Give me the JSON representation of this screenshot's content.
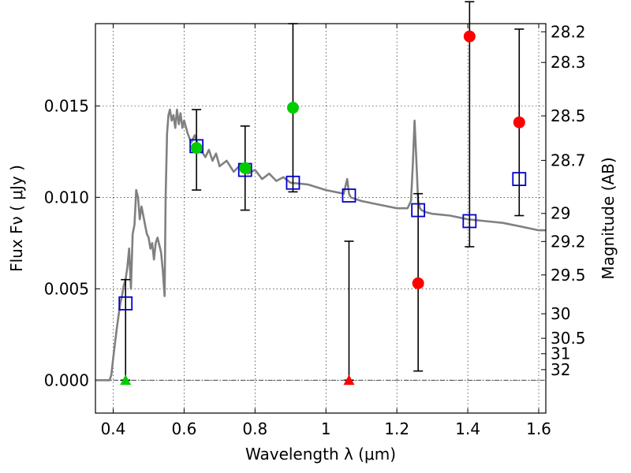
{
  "chart_data": {
    "type": "scatter",
    "xlabel": "Wavelength  λ (μm)",
    "ylabel": "Flux  Fν  ( μJy )",
    "ylabel_right": "Magnitude (AB)",
    "xlim": [
      0.35,
      1.62
    ],
    "ylim": [
      -0.0018,
      0.0195
    ],
    "grid": true,
    "x_ticks": [
      {
        "value": 0.4,
        "label": "0.4"
      },
      {
        "value": 0.6,
        "label": "0.6"
      },
      {
        "value": 0.8,
        "label": "0.8"
      },
      {
        "value": 1.0,
        "label": "1"
      },
      {
        "value": 1.2,
        "label": "1.2"
      },
      {
        "value": 1.4,
        "label": "1.4"
      },
      {
        "value": 1.6,
        "label": "1.6"
      }
    ],
    "y_ticks": [
      {
        "value": 0.0,
        "label": "0.000"
      },
      {
        "value": 0.005,
        "label": "0.005"
      },
      {
        "value": 0.01,
        "label": "0.010"
      },
      {
        "value": 0.015,
        "label": "0.015"
      }
    ],
    "mag_ticks": [
      {
        "value": 28.2,
        "label": "28.2"
      },
      {
        "value": 28.3,
        "label": "28.3"
      },
      {
        "value": 28.5,
        "label": "28.5"
      },
      {
        "value": 28.7,
        "label": "28.7"
      },
      {
        "value": 29.0,
        "label": "29"
      },
      {
        "value": 29.2,
        "label": "29.2"
      },
      {
        "value": 29.5,
        "label": "29.5"
      },
      {
        "value": 30.0,
        "label": "30"
      },
      {
        "value": 30.5,
        "label": "30.5"
      },
      {
        "value": 31.0,
        "label": "31"
      },
      {
        "value": 32.0,
        "label": "32"
      }
    ],
    "colors": {
      "template": "#808080",
      "model": "#0000cc",
      "detected": "#00cc00",
      "non_detected": "#ff0000",
      "errorbar": "#000000"
    },
    "template_spectrum": {
      "x": [
        0.35,
        0.39,
        0.395,
        0.4,
        0.405,
        0.41,
        0.415,
        0.42,
        0.425,
        0.43,
        0.435,
        0.44,
        0.445,
        0.45,
        0.455,
        0.46,
        0.465,
        0.47,
        0.475,
        0.48,
        0.485,
        0.49,
        0.495,
        0.5,
        0.505,
        0.51,
        0.515,
        0.52,
        0.525,
        0.53,
        0.535,
        0.54,
        0.545,
        0.548,
        0.552,
        0.556,
        0.56,
        0.565,
        0.57,
        0.575,
        0.58,
        0.585,
        0.59,
        0.595,
        0.6,
        0.61,
        0.62,
        0.63,
        0.64,
        0.65,
        0.66,
        0.67,
        0.68,
        0.69,
        0.7,
        0.72,
        0.74,
        0.76,
        0.78,
        0.8,
        0.82,
        0.84,
        0.86,
        0.88,
        0.9,
        0.95,
        1.0,
        1.05,
        1.06,
        1.065,
        1.07,
        1.1,
        1.15,
        1.2,
        1.23,
        1.24,
        1.245,
        1.25,
        1.255,
        1.26,
        1.265,
        1.27,
        1.28,
        1.3,
        1.35,
        1.4,
        1.45,
        1.5,
        1.55,
        1.6,
        1.62
      ],
      "y": [
        0.0,
        0.0,
        0.0003,
        0.0012,
        0.002,
        0.0028,
        0.0035,
        0.0042,
        0.0046,
        0.0052,
        0.0055,
        0.0062,
        0.0072,
        0.005,
        0.008,
        0.0085,
        0.0104,
        0.01,
        0.0088,
        0.0095,
        0.009,
        0.0085,
        0.008,
        0.0078,
        0.0072,
        0.0075,
        0.0066,
        0.0075,
        0.0078,
        0.0074,
        0.007,
        0.006,
        0.0046,
        0.01,
        0.0135,
        0.0145,
        0.0148,
        0.0142,
        0.0145,
        0.0138,
        0.0148,
        0.014,
        0.0146,
        0.0138,
        0.0142,
        0.0135,
        0.013,
        0.0134,
        0.0128,
        0.0125,
        0.0122,
        0.0126,
        0.012,
        0.0124,
        0.0117,
        0.012,
        0.0114,
        0.0118,
        0.0113,
        0.0115,
        0.011,
        0.0113,
        0.0109,
        0.0111,
        0.0108,
        0.0107,
        0.0104,
        0.0102,
        0.011,
        0.0102,
        0.01,
        0.0098,
        0.0096,
        0.0094,
        0.0094,
        0.0098,
        0.0118,
        0.0142,
        0.012,
        0.0098,
        0.0094,
        0.0093,
        0.0092,
        0.0091,
        0.009,
        0.0088,
        0.0087,
        0.0086,
        0.0084,
        0.0082,
        0.0082
      ]
    },
    "model_fluxes": {
      "x": [
        0.435,
        0.635,
        0.772,
        0.907,
        1.065,
        1.26,
        1.405,
        1.545
      ],
      "y": [
        0.0042,
        0.0128,
        0.0115,
        0.0108,
        0.0101,
        0.0093,
        0.0087,
        0.011
      ]
    },
    "detections": {
      "x": [
        0.635,
        0.772,
        0.907
      ],
      "y": [
        0.0127,
        0.0116,
        0.0149
      ],
      "err_low": [
        0.0104,
        0.0093,
        0.0103
      ],
      "err_high": [
        0.0148,
        0.0139,
        0.0195
      ]
    },
    "non_detections": {
      "x": [
        1.26,
        1.405,
        1.545
      ],
      "y": [
        0.0053,
        0.0188,
        0.0141
      ],
      "err_low": [
        0.0005,
        0.0073,
        0.009
      ],
      "err_high": [
        0.0102,
        0.0207,
        0.0192
      ]
    },
    "upper_limits": {
      "x": [
        0.435,
        1.065
      ],
      "y": [
        0.0,
        0.0
      ],
      "err_high": [
        0.0055,
        0.0076
      ],
      "colors": [
        "detected",
        "non_detected"
      ]
    }
  }
}
